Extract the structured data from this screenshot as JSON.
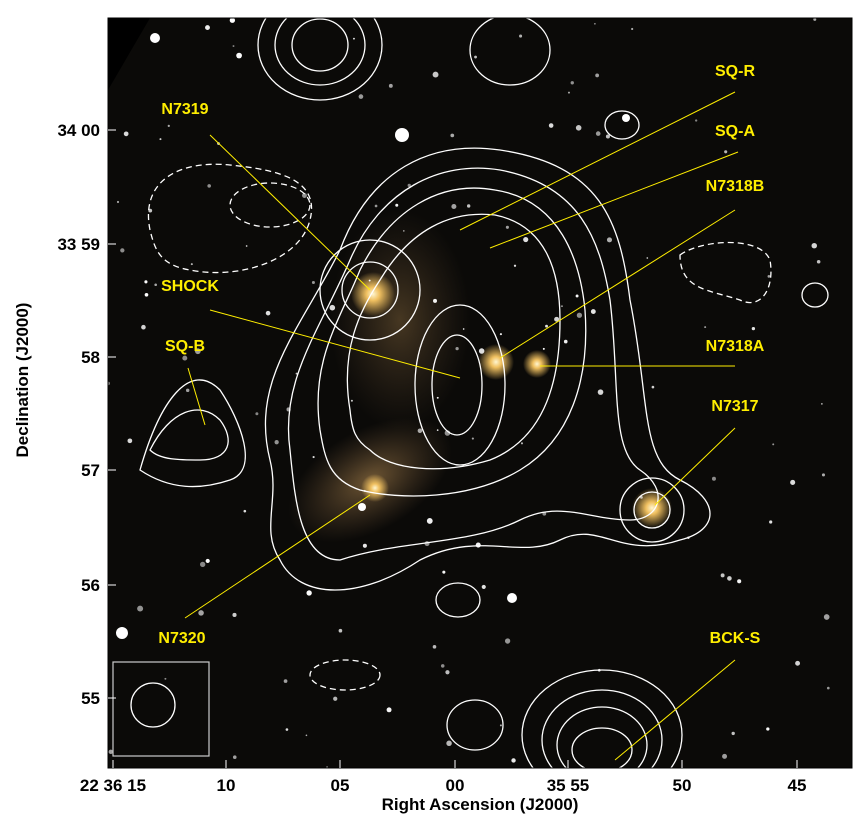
{
  "image": {
    "x_axis": {
      "label": "Right Ascension (J2000)",
      "ticks": [
        "22 36 15",
        "10",
        "05",
        "00",
        "35 55",
        "50",
        "45"
      ]
    },
    "y_axis": {
      "label": "Declination (J2000)",
      "ticks": [
        "34 00",
        "33 59",
        "58",
        "57",
        "56",
        "55"
      ]
    },
    "annotations": [
      {
        "label": "N7319"
      },
      {
        "label": "SQ-R"
      },
      {
        "label": "SQ-A"
      },
      {
        "label": "N7318B"
      },
      {
        "label": "SHOCK"
      },
      {
        "label": "N7318A"
      },
      {
        "label": "SQ-B"
      },
      {
        "label": "N7317"
      },
      {
        "label": "N7320"
      },
      {
        "label": "BCK-S"
      }
    ]
  }
}
